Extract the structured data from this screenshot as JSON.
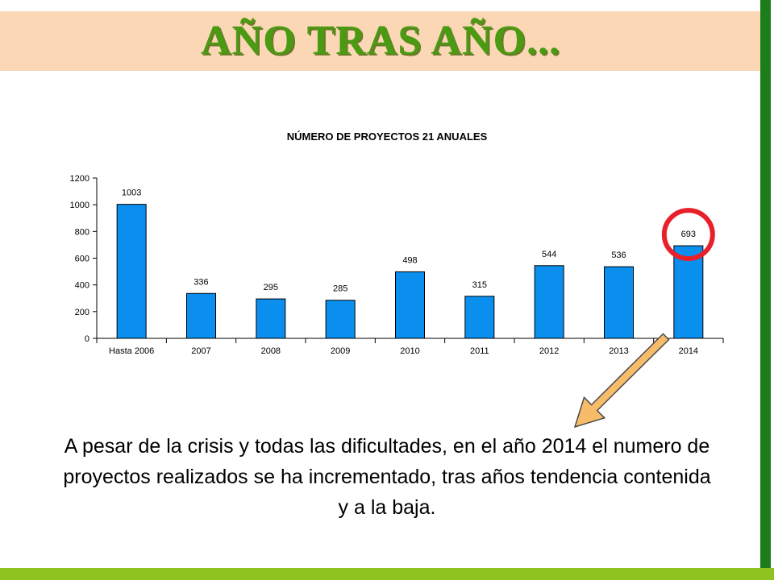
{
  "slide": {
    "title": "AÑO TRAS AÑO...",
    "caption": "A pesar de la crisis y todas las dificultades, en el año 2014 el numero de proyectos realizados se ha incrementado, tras años tendencia contenida y a la baja.",
    "colors": {
      "title": "#4a9a12",
      "title_band": "#fbd7b5",
      "right_bar": "#1b7e1b",
      "bottom_bar": "#8fc31f",
      "highlight_circle": "#e8202a",
      "arrow": "#f7bc6a"
    }
  },
  "chart_data": {
    "type": "bar",
    "title": "NÚMERO DE PROYECTOS 21 ANUALES",
    "categories": [
      "Hasta 2006",
      "2007",
      "2008",
      "2009",
      "2010",
      "2011",
      "2012",
      "2013",
      "2014"
    ],
    "values": [
      1003,
      336,
      295,
      285,
      498,
      315,
      544,
      536,
      693
    ],
    "ylim": [
      0,
      1200
    ],
    "yticks": [
      0,
      200,
      400,
      600,
      800,
      1000,
      1200
    ],
    "xlabel": "",
    "ylabel": "",
    "grid": false,
    "bar_color": "#0a8fef",
    "highlight": {
      "category": "2014",
      "mark": "red circle",
      "arrow": "from highlighted bar to caption"
    }
  }
}
